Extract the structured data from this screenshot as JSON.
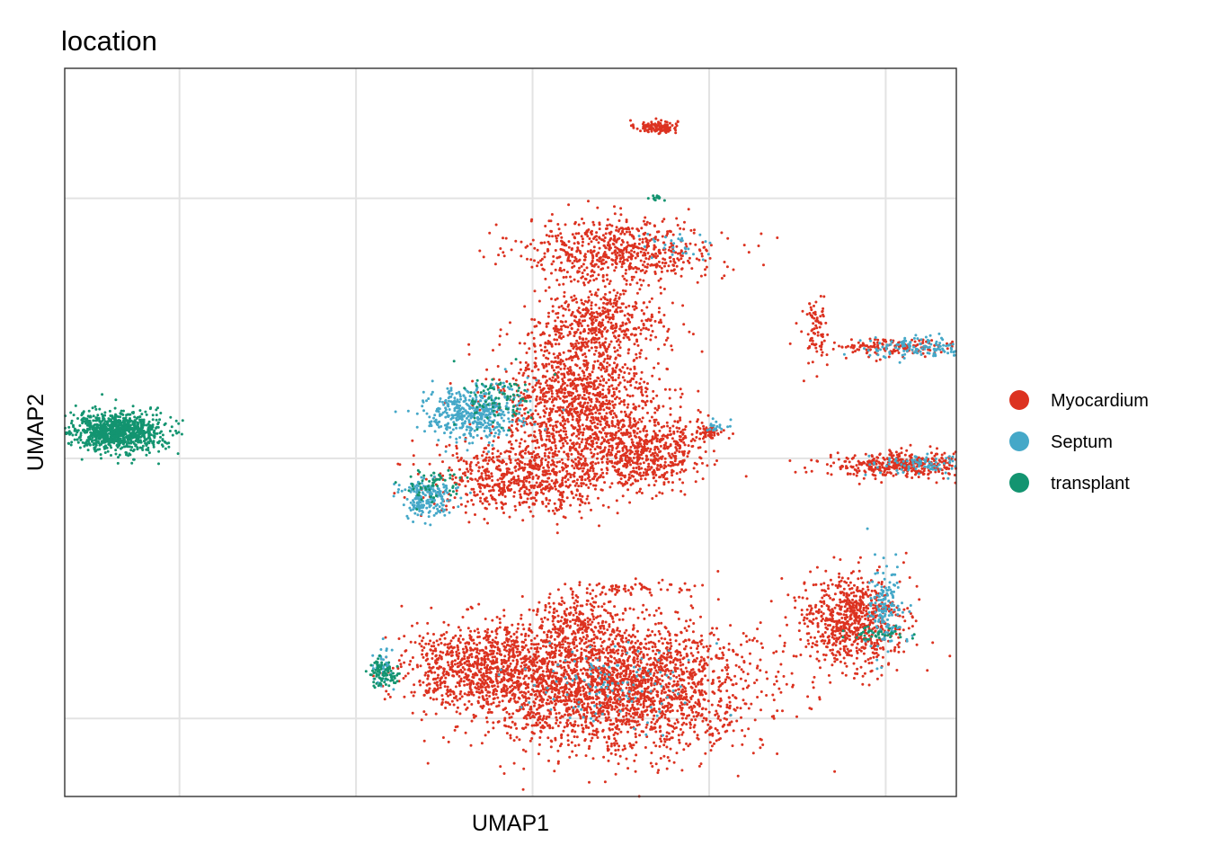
{
  "chart_data": {
    "type": "scatter",
    "title": "location",
    "xlabel": "UMAP1",
    "ylabel": "UMAP2",
    "xlim": [
      -6.3,
      3.8
    ],
    "ylim": [
      -6.2,
      5.0
    ],
    "x_gridlines": [
      -5,
      -3,
      -1,
      1,
      3
    ],
    "y_gridlines": [
      -5,
      -1,
      3
    ],
    "grid": true,
    "tick_labels_visible": false,
    "legend": {
      "position": "right",
      "entries": [
        {
          "name": "Myocardium",
          "color": "#dc3220"
        },
        {
          "name": "Septum",
          "color": "#45a8c8"
        },
        {
          "name": "transplant",
          "color": "#139470"
        }
      ]
    },
    "series": [
      {
        "name": "Myocardium",
        "color": "#dc3220",
        "clusters": [
          {
            "cx": 0.4,
            "cy": 4.1,
            "sx": 0.12,
            "sy": 0.05,
            "n": 120
          },
          {
            "cx": 0.0,
            "cy": 2.2,
            "sx": 0.55,
            "sy": 0.25,
            "n": 650
          },
          {
            "cx": -0.2,
            "cy": 1.1,
            "sx": 0.35,
            "sy": 0.28,
            "n": 420
          },
          {
            "cx": -0.5,
            "cy": -0.2,
            "sx": 0.45,
            "sy": 0.6,
            "n": 1400
          },
          {
            "cx": 0.3,
            "cy": -0.9,
            "sx": 0.3,
            "sy": 0.28,
            "n": 550
          },
          {
            "cx": -1.1,
            "cy": -1.3,
            "sx": 0.5,
            "sy": 0.25,
            "n": 650
          },
          {
            "cx": -0.1,
            "cy": -4.5,
            "sx": 0.8,
            "sy": 0.5,
            "n": 2600
          },
          {
            "cx": -1.6,
            "cy": -4.2,
            "sx": 0.45,
            "sy": 0.3,
            "n": 800
          },
          {
            "cx": -0.5,
            "cy": -3.5,
            "sx": 0.22,
            "sy": 0.2,
            "n": 200
          },
          {
            "cx": 0.1,
            "cy": -3.0,
            "sx": 0.3,
            "sy": 0.06,
            "n": 60
          },
          {
            "cx": 1.0,
            "cy": -0.6,
            "sx": 0.1,
            "sy": 0.05,
            "n": 50
          },
          {
            "cx": 2.2,
            "cy": 1.0,
            "sx": 0.07,
            "sy": 0.25,
            "n": 80
          },
          {
            "cx": 3.1,
            "cy": 0.7,
            "sx": 0.4,
            "sy": 0.07,
            "n": 160
          },
          {
            "cx": 2.6,
            "cy": -3.5,
            "sx": 0.3,
            "sy": 0.35,
            "n": 750
          },
          {
            "cx": 3.2,
            "cy": -1.1,
            "sx": 0.45,
            "sy": 0.1,
            "n": 430
          }
        ]
      },
      {
        "name": "Septum",
        "color": "#45a8c8",
        "clusters": [
          {
            "cx": -1.7,
            "cy": -0.3,
            "sx": 0.28,
            "sy": 0.22,
            "n": 450
          },
          {
            "cx": -2.2,
            "cy": -1.6,
            "sx": 0.15,
            "sy": 0.15,
            "n": 200
          },
          {
            "cx": -2.7,
            "cy": -4.2,
            "sx": 0.05,
            "sy": 0.15,
            "n": 40
          },
          {
            "cx": -0.2,
            "cy": -4.5,
            "sx": 0.5,
            "sy": 0.3,
            "n": 120
          },
          {
            "cx": 3.4,
            "cy": 0.7,
            "sx": 0.35,
            "sy": 0.08,
            "n": 130
          },
          {
            "cx": 3.5,
            "cy": -1.1,
            "sx": 0.3,
            "sy": 0.08,
            "n": 100
          },
          {
            "cx": 3.0,
            "cy": -3.3,
            "sx": 0.1,
            "sy": 0.35,
            "n": 160
          },
          {
            "cx": 1.1,
            "cy": -0.5,
            "sx": 0.08,
            "sy": 0.04,
            "n": 20
          },
          {
            "cx": 0.6,
            "cy": 2.3,
            "sx": 0.2,
            "sy": 0.1,
            "n": 30
          }
        ]
      },
      {
        "name": "transplant",
        "color": "#139470",
        "clusters": [
          {
            "cx": -5.7,
            "cy": -0.6,
            "sx": 0.26,
            "sy": 0.15,
            "n": 1000
          },
          {
            "cx": -1.4,
            "cy": -0.1,
            "sx": 0.2,
            "sy": 0.2,
            "n": 90
          },
          {
            "cx": -2.1,
            "cy": -1.4,
            "sx": 0.15,
            "sy": 0.12,
            "n": 60
          },
          {
            "cx": -2.7,
            "cy": -4.3,
            "sx": 0.08,
            "sy": 0.12,
            "n": 90
          },
          {
            "cx": 2.9,
            "cy": -3.7,
            "sx": 0.2,
            "sy": 0.05,
            "n": 40
          },
          {
            "cx": 0.4,
            "cy": 3.0,
            "sx": 0.04,
            "sy": 0.03,
            "n": 15
          }
        ]
      }
    ]
  }
}
